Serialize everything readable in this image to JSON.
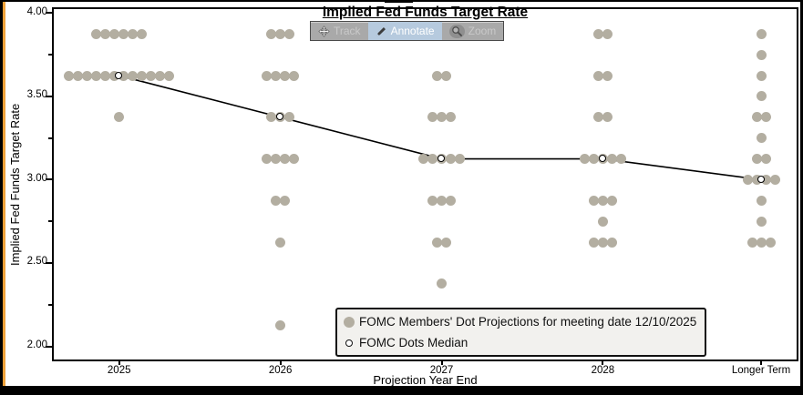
{
  "window": {
    "accent_color": "#f0a23a",
    "background_color": "#000000"
  },
  "toolbar": {
    "track_label": "Track",
    "annotate_label": "Annotate",
    "zoom_label": "Zoom",
    "active_tool": "Annotate",
    "active_color": "#b6cade",
    "bar_color": "#a9a9a9"
  },
  "chart_data": {
    "type": "scatter",
    "title": "Implied Fed Funds Target Rate",
    "xlabel": "Projection Year End",
    "ylabel": "Implied Fed Funds Target Rate",
    "categories": [
      "2025",
      "2026",
      "2027",
      "2028",
      "Longer Term"
    ],
    "ylim": [
      1.91,
      4.035
    ],
    "yticks_major": [
      4.0,
      3.5,
      3.0,
      2.5,
      2.0
    ],
    "yticks_minor": [
      3.75,
      3.25,
      2.75,
      2.25
    ],
    "grid": false,
    "dot_color": "#b3aea1",
    "line_color": "#000000",
    "dot_columns": [
      {
        "category": "2025",
        "levels": [
          {
            "value": 3.875,
            "count": 6
          },
          {
            "value": 3.625,
            "count": 12
          },
          {
            "value": 3.375,
            "count": 1
          }
        ]
      },
      {
        "category": "2026",
        "levels": [
          {
            "value": 3.875,
            "count": 3
          },
          {
            "value": 3.625,
            "count": 4
          },
          {
            "value": 3.375,
            "count": 3
          },
          {
            "value": 3.125,
            "count": 4
          },
          {
            "value": 2.875,
            "count": 2
          },
          {
            "value": 2.625,
            "count": 1
          },
          {
            "value": 2.125,
            "count": 1
          }
        ]
      },
      {
        "category": "2027",
        "levels": [
          {
            "value": 3.625,
            "count": 2
          },
          {
            "value": 3.375,
            "count": 3
          },
          {
            "value": 3.125,
            "count": 5
          },
          {
            "value": 2.875,
            "count": 3
          },
          {
            "value": 2.625,
            "count": 2
          },
          {
            "value": 2.375,
            "count": 1
          }
        ]
      },
      {
        "category": "2028",
        "levels": [
          {
            "value": 3.875,
            "count": 2
          },
          {
            "value": 3.625,
            "count": 2
          },
          {
            "value": 3.375,
            "count": 2
          },
          {
            "value": 3.125,
            "count": 5
          },
          {
            "value": 2.875,
            "count": 3
          },
          {
            "value": 2.75,
            "count": 1
          },
          {
            "value": 2.625,
            "count": 3
          }
        ]
      },
      {
        "category": "Longer Term",
        "levels": [
          {
            "value": 3.875,
            "count": 1
          },
          {
            "value": 3.75,
            "count": 1
          },
          {
            "value": 3.625,
            "count": 1
          },
          {
            "value": 3.5,
            "count": 1
          },
          {
            "value": 3.375,
            "count": 2
          },
          {
            "value": 3.25,
            "count": 1
          },
          {
            "value": 3.125,
            "count": 2
          },
          {
            "value": 3.0,
            "count": 4
          },
          {
            "value": 2.875,
            "count": 1
          },
          {
            "value": 2.75,
            "count": 1
          },
          {
            "value": 2.625,
            "count": 3
          }
        ]
      }
    ],
    "medians": {
      "name": "FOMC Dots Median",
      "values": [
        3.625,
        3.375,
        3.125,
        3.125,
        3.0
      ]
    },
    "legend": {
      "position": "bottom-center",
      "entries": [
        {
          "marker": "filled-dot",
          "label": "FOMC Members' Dot Projections for meeting date 12/10/2025"
        },
        {
          "marker": "open-circle",
          "label": "FOMC Dots Median"
        }
      ]
    }
  }
}
